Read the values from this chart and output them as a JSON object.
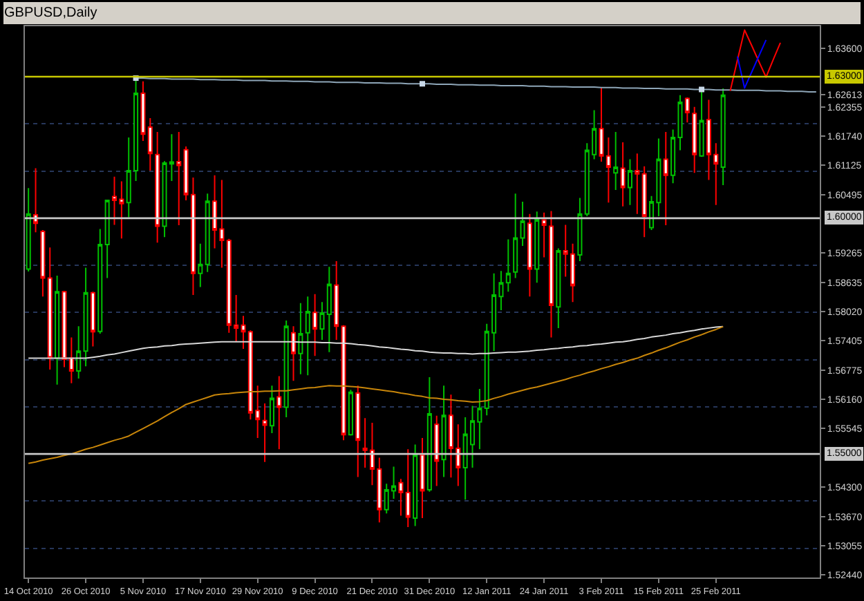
{
  "chart_data": {
    "type": "candlestick",
    "title": "GBPUSD,Daily",
    "categories": [
      "14 Oct 2010",
      null,
      null,
      null,
      null,
      null,
      null,
      null,
      "26 Oct 2010",
      null,
      null,
      null,
      null,
      null,
      null,
      null,
      "5 Nov 2010",
      null,
      null,
      null,
      null,
      null,
      null,
      null,
      "17 Nov 2010",
      null,
      null,
      null,
      null,
      null,
      null,
      null,
      "29 Nov 2010",
      null,
      null,
      null,
      null,
      null,
      null,
      null,
      "9 Dec 2010",
      null,
      null,
      null,
      null,
      null,
      null,
      null,
      "21 Dec 2010",
      null,
      null,
      null,
      null,
      null,
      null,
      null,
      "31 Dec 2010",
      null,
      null,
      null,
      null,
      null,
      null,
      null,
      "12 Jan 2011",
      null,
      null,
      null,
      null,
      null,
      null,
      null,
      "24 Jan 2011",
      null,
      null,
      null,
      null,
      null,
      null,
      null,
      "3 Feb 2011",
      null,
      null,
      null,
      null,
      null,
      null,
      null,
      "15 Feb 2011",
      null,
      null,
      null,
      null,
      null,
      null,
      null,
      "25 Feb 2011",
      null,
      null,
      null,
      null,
      null,
      null,
      null,
      null,
      null,
      null,
      null,
      null,
      null,
      null
    ],
    "ohlc": [
      [
        1.5892,
        1.6064,
        1.5887,
        1.6009
      ],
      [
        1.6007,
        1.6106,
        1.597,
        1.5989
      ],
      [
        1.5972,
        1.5975,
        1.5834,
        1.5873
      ],
      [
        1.5873,
        1.5938,
        1.5679,
        1.5703
      ],
      [
        1.5703,
        1.5878,
        1.5647,
        1.5844
      ],
      [
        1.5844,
        1.5846,
        1.5684,
        1.5701
      ],
      [
        1.5703,
        1.5747,
        1.565,
        1.5676
      ],
      [
        1.5676,
        1.5771,
        1.566,
        1.5718
      ],
      [
        1.5718,
        1.5895,
        1.5686,
        1.5842
      ],
      [
        1.5842,
        1.5844,
        1.5728,
        1.5759
      ],
      [
        1.576,
        1.5977,
        1.5755,
        1.5944
      ],
      [
        1.5944,
        1.6039,
        1.5873,
        1.6038
      ],
      [
        1.6046,
        1.6088,
        1.5986,
        1.6038
      ],
      [
        1.604,
        1.6078,
        1.5957,
        1.6031
      ],
      [
        1.6033,
        1.6171,
        1.6002,
        1.6101
      ],
      [
        1.6101,
        1.6297,
        1.6079,
        1.6265
      ],
      [
        1.6265,
        1.629,
        1.6164,
        1.6178
      ],
      [
        1.6193,
        1.6212,
        1.6101,
        1.6137
      ],
      [
        1.6135,
        1.6183,
        1.5948,
        1.5983
      ],
      [
        1.5983,
        1.6121,
        1.596,
        1.6117
      ],
      [
        1.6115,
        1.6178,
        1.6079,
        1.6119
      ],
      [
        1.612,
        1.6183,
        1.5985,
        1.6112
      ],
      [
        1.6145,
        1.6152,
        1.6038,
        1.605
      ],
      [
        1.605,
        1.6086,
        1.5837,
        1.5883
      ],
      [
        1.5883,
        1.5946,
        1.5854,
        1.5902
      ],
      [
        1.5902,
        1.6052,
        1.5886,
        1.6036
      ],
      [
        1.6036,
        1.6091,
        1.5936,
        1.5975
      ],
      [
        1.5977,
        1.6081,
        1.5895,
        1.5953
      ],
      [
        1.5953,
        1.5956,
        1.5757,
        1.5773
      ],
      [
        1.5773,
        1.5837,
        1.5738,
        1.5767
      ],
      [
        1.5773,
        1.5793,
        1.5723,
        1.5759
      ],
      [
        1.5759,
        1.5762,
        1.5573,
        1.5587
      ],
      [
        1.5592,
        1.5645,
        1.5534,
        1.5573
      ],
      [
        1.5571,
        1.5607,
        1.5483,
        1.5561
      ],
      [
        1.556,
        1.5645,
        1.5544,
        1.5618
      ],
      [
        1.5621,
        1.5665,
        1.551,
        1.5599
      ],
      [
        1.5599,
        1.5783,
        1.5578,
        1.5771
      ],
      [
        1.5757,
        1.5771,
        1.5655,
        1.5713
      ],
      [
        1.5713,
        1.582,
        1.5669,
        1.5755
      ],
      [
        1.5757,
        1.5834,
        1.5667,
        1.5802
      ],
      [
        1.58,
        1.5839,
        1.5708,
        1.5765
      ],
      [
        1.5765,
        1.5822,
        1.5742,
        1.5799
      ],
      [
        1.5796,
        1.5897,
        1.5716,
        1.586
      ],
      [
        1.5858,
        1.5909,
        1.5742,
        1.5771
      ],
      [
        1.5771,
        1.5773,
        1.5529,
        1.5541
      ],
      [
        1.5541,
        1.5636,
        1.5539,
        1.5631
      ],
      [
        1.5629,
        1.5645,
        1.5451,
        1.5529
      ],
      [
        1.5512,
        1.5576,
        1.5471,
        1.5508
      ],
      [
        1.5508,
        1.5566,
        1.5434,
        1.5468
      ],
      [
        1.5468,
        1.5492,
        1.5355,
        1.5382
      ],
      [
        1.5382,
        1.5437,
        1.5374,
        1.5424
      ],
      [
        1.5422,
        1.5473,
        1.5405,
        1.5432
      ],
      [
        1.5439,
        1.5447,
        1.5369,
        1.5418
      ],
      [
        1.5418,
        1.551,
        1.5345,
        1.5366
      ],
      [
        1.5364,
        1.552,
        1.5347,
        1.5498
      ],
      [
        1.5498,
        1.5534,
        1.5364,
        1.5422
      ],
      [
        1.5424,
        1.5663,
        1.542,
        1.5585
      ],
      [
        1.5563,
        1.5581,
        1.5432,
        1.5485
      ],
      [
        1.5488,
        1.5645,
        1.5451,
        1.5582
      ],
      [
        1.5582,
        1.5626,
        1.545,
        1.5512
      ],
      [
        1.5512,
        1.5563,
        1.5432,
        1.5471
      ],
      [
        1.5471,
        1.5578,
        1.5403,
        1.5542
      ],
      [
        1.552,
        1.5602,
        1.5471,
        1.557
      ],
      [
        1.5568,
        1.5638,
        1.551,
        1.5597
      ],
      [
        1.5597,
        1.5776,
        1.5582,
        1.576
      ],
      [
        1.5757,
        1.5883,
        1.5718,
        1.5837
      ],
      [
        1.5834,
        1.5888,
        1.5805,
        1.5863
      ],
      [
        1.5863,
        1.5955,
        1.5844,
        1.5883
      ],
      [
        1.5886,
        1.6052,
        1.5873,
        1.5958
      ],
      [
        1.5958,
        1.6035,
        1.5941,
        1.5994
      ],
      [
        1.5989,
        1.6009,
        1.5834,
        1.5892
      ],
      [
        1.5892,
        1.6014,
        1.5863,
        1.5997
      ],
      [
        1.5996,
        1.6012,
        1.5917,
        1.5985
      ],
      [
        1.5983,
        1.6015,
        1.5747,
        1.5815
      ],
      [
        1.5812,
        1.5936,
        1.5767,
        1.5931
      ],
      [
        1.5931,
        1.5986,
        1.5876,
        1.5924
      ],
      [
        1.5924,
        1.5946,
        1.5822,
        1.5857
      ],
      [
        1.5922,
        1.6043,
        1.5909,
        1.6009
      ],
      [
        1.6009,
        1.6159,
        1.6004,
        1.6144
      ],
      [
        1.6135,
        1.6229,
        1.6125,
        1.619
      ],
      [
        1.619,
        1.6277,
        1.612,
        1.6132
      ],
      [
        1.6132,
        1.6171,
        1.6033,
        1.6108
      ],
      [
        1.6096,
        1.6183,
        1.606,
        1.6108
      ],
      [
        1.6106,
        1.6161,
        1.6025,
        1.6065
      ],
      [
        1.6065,
        1.6125,
        1.6028,
        1.6101
      ],
      [
        1.6101,
        1.6137,
        1.6009,
        1.6094
      ],
      [
        1.6094,
        1.611,
        1.596,
        1.6004
      ],
      [
        1.598,
        1.6047,
        1.5975,
        1.6035
      ],
      [
        1.6033,
        1.6169,
        1.6004,
        1.6125
      ],
      [
        1.6125,
        1.6183,
        1.5985,
        1.6091
      ],
      [
        1.6091,
        1.6188,
        1.6074,
        1.6171
      ],
      [
        1.6171,
        1.6261,
        1.6144,
        1.6246
      ],
      [
        1.6254,
        1.6256,
        1.6203,
        1.6224
      ],
      [
        1.6222,
        1.6236,
        1.6096,
        1.6135
      ],
      [
        1.6132,
        1.6273,
        1.613,
        1.6207
      ],
      [
        1.6209,
        1.6251,
        1.6081,
        1.6135
      ],
      [
        1.6135,
        1.6159,
        1.6028,
        1.6115
      ],
      [
        1.6108,
        1.6275,
        1.607,
        1.6261
      ],
      null,
      null,
      null,
      null,
      null,
      null,
      null,
      null,
      null,
      null,
      null,
      null,
      null
    ],
    "colors": [
      "#00c000",
      "#ff0000",
      "#ff0000",
      "#ff0000",
      "#00c000",
      "#ff0000",
      "#ff0000",
      "#00c000",
      "#00c000",
      "#ff0000",
      "#00c000",
      "#00c000",
      "#ff0000",
      "#ff0000",
      "#00c000",
      "#00c000",
      "#ff0000",
      "#ff0000",
      "#ff0000",
      "#00c000",
      "#00c000",
      "#ff0000",
      "#ff0000",
      "#ff0000",
      "#00c000",
      "#00c000",
      "#ff0000",
      "#ff0000",
      "#ff0000",
      "#ff0000",
      "#ff0000",
      "#ff0000",
      "#ff0000",
      "#ff0000",
      "#00c000",
      "#ff0000",
      "#00c000",
      "#ff0000",
      "#00c000",
      "#00c000",
      "#ff0000",
      "#00c000",
      "#00c000",
      "#ff0000",
      "#ff0000",
      "#00c000",
      "#ff0000",
      "#ff0000",
      "#ff0000",
      "#ff0000",
      "#00c000",
      "#00c000",
      "#ff0000",
      "#ff0000",
      "#00c000",
      "#ff0000",
      "#00c000",
      "#ff0000",
      "#00c000",
      "#ff0000",
      "#ff0000",
      "#00c000",
      "#00c000",
      "#00c000",
      "#00c000",
      "#00c000",
      "#00c000",
      "#00c000",
      "#00c000",
      "#00c000",
      "#ff0000",
      "#00c000",
      "#ff0000",
      "#ff0000",
      "#00c000",
      "#ff0000",
      "#ff0000",
      "#00c000",
      "#00c000",
      "#00c000",
      "#ff0000",
      "#ff0000",
      "#00c000",
      "#ff0000",
      "#00c000",
      "#ff0000",
      "#ff0000",
      "#00c000",
      "#00c000",
      "#ff0000",
      "#00c000",
      "#00c000",
      "#ff0000",
      "#ff0000",
      "#00c000",
      "#ff0000",
      "#ff0000",
      "#00c000",
      null,
      null,
      null,
      null,
      null,
      null,
      null,
      null,
      null,
      null,
      null,
      null,
      null
    ],
    "series": [
      {
        "type": "line",
        "color": "#d8d8d8",
        "values": [
          1.5703,
          1.5703,
          1.5703,
          1.5703,
          1.5703,
          1.5703,
          1.5703,
          1.5703,
          1.5703,
          1.5705,
          1.5707,
          1.571,
          1.5712,
          1.5715,
          1.5718,
          1.5721,
          1.5724,
          1.5726,
          1.5727,
          1.5729,
          1.573,
          1.5732,
          1.5733,
          1.5734,
          1.5735,
          1.5736,
          1.5737,
          1.5738,
          1.5738,
          1.5738,
          1.5738,
          1.5738,
          1.5738,
          1.5738,
          1.5738,
          1.5738,
          1.5738,
          1.5738,
          1.5737,
          1.5737,
          1.5737,
          1.5736,
          1.5736,
          1.5735,
          1.5735,
          1.5734,
          1.5732,
          1.5731,
          1.5729,
          1.5727,
          1.5726,
          1.5724,
          1.5722,
          1.5721,
          1.5719,
          1.5718,
          1.5716,
          1.5715,
          1.5714,
          1.5714,
          1.5713,
          1.5713,
          1.5712,
          1.5713,
          1.5713,
          1.5714,
          1.5715,
          1.5716,
          1.5716,
          1.5717,
          1.5718,
          1.572,
          1.5721,
          1.5723,
          1.5724,
          1.5726,
          1.5727,
          1.5729,
          1.573,
          1.5732,
          1.5733,
          1.5735,
          1.5737,
          1.5738,
          1.574,
          1.5743,
          1.5745,
          1.5748,
          1.575,
          1.5752,
          1.5755,
          1.5757,
          1.576,
          1.5762,
          1.5765,
          1.5767,
          1.5769,
          1.577,
          null,
          null,
          null,
          null,
          null,
          null,
          null,
          null,
          null,
          null,
          null,
          null,
          null
        ]
      },
      {
        "type": "line",
        "color": "#c8860a",
        "values": [
          1.548,
          1.5483,
          1.5487,
          1.549,
          1.5493,
          1.5497,
          1.55,
          1.5505,
          1.551,
          1.5514,
          1.5519,
          1.5524,
          1.5529,
          1.5533,
          1.5538,
          1.5546,
          1.5554,
          1.5562,
          1.557,
          1.5579,
          1.5588,
          1.5596,
          1.5605,
          1.561,
          1.5615,
          1.562,
          1.5625,
          1.5627,
          1.5628,
          1.563,
          1.5631,
          1.5632,
          1.5632,
          1.5633,
          1.5633,
          1.5634,
          1.5634,
          1.5636,
          1.5638,
          1.564,
          1.5641,
          1.5643,
          1.5645,
          1.5644,
          1.5644,
          1.5643,
          1.5642,
          1.564,
          1.5638,
          1.5636,
          1.5634,
          1.5632,
          1.5629,
          1.5627,
          1.5624,
          1.5622,
          1.5619,
          1.5618,
          1.5616,
          1.5615,
          1.5613,
          1.5612,
          1.561,
          1.5611,
          1.5613,
          1.5618,
          1.5622,
          1.5627,
          1.5631,
          1.5635,
          1.5639,
          1.5642,
          1.5646,
          1.565,
          1.5654,
          1.5658,
          1.5663,
          1.5667,
          1.5672,
          1.5676,
          1.5681,
          1.5685,
          1.569,
          1.5694,
          1.5699,
          1.5703,
          1.5709,
          1.5714,
          1.572,
          1.5725,
          1.5731,
          1.5737,
          1.5742,
          1.5748,
          1.5753,
          1.5759,
          1.5764,
          1.577,
          null,
          null,
          null,
          null,
          null,
          null,
          null,
          null,
          null,
          null,
          null,
          null,
          null
        ]
      },
      {
        "type": "line",
        "color": "#8ea6b8",
        "values": [
          null,
          null,
          null,
          null,
          null,
          null,
          null,
          null,
          null,
          null,
          null,
          null,
          null,
          null,
          null,
          1.6297,
          1.6297,
          1.6296,
          1.6296,
          1.6296,
          1.6295,
          1.6295,
          1.6295,
          1.6295,
          1.6294,
          1.6294,
          1.6294,
          1.6293,
          1.6293,
          1.6293,
          1.6292,
          1.6292,
          1.6292,
          1.6292,
          1.6291,
          1.6291,
          1.6291,
          1.629,
          1.629,
          1.629,
          1.6289,
          1.6289,
          1.6289,
          1.6288,
          1.6288,
          1.6288,
          1.6288,
          1.6287,
          1.6287,
          1.6287,
          1.6286,
          1.6286,
          1.6286,
          1.6285,
          1.6285,
          1.6285,
          1.6285,
          1.6284,
          1.6284,
          1.6284,
          1.6283,
          1.6283,
          1.6283,
          1.6282,
          1.6282,
          1.6282,
          1.6281,
          1.6281,
          1.6281,
          1.6281,
          1.628,
          1.628,
          1.628,
          1.6279,
          1.6279,
          1.6279,
          1.6278,
          1.6278,
          1.6278,
          1.6278,
          1.6277,
          1.6277,
          1.6277,
          1.6276,
          1.6276,
          1.6276,
          1.6275,
          1.6275,
          1.6275,
          1.6274,
          1.6274,
          1.6274,
          1.6274,
          1.6273,
          1.6273,
          1.6273,
          1.6272,
          1.6272,
          1.6272,
          1.6271,
          1.6271,
          1.6271,
          1.6271,
          1.627,
          1.627,
          1.627,
          1.6269,
          1.6269,
          1.6269,
          1.6268,
          1.6268
        ]
      },
      {
        "type": "scatter",
        "color": "#c8d8e8",
        "marker": "square",
        "values": [
          null,
          null,
          null,
          null,
          null,
          null,
          null,
          null,
          null,
          null,
          null,
          null,
          null,
          null,
          null,
          1.6297,
          null,
          null,
          null,
          null,
          null,
          null,
          null,
          null,
          null,
          null,
          null,
          null,
          null,
          null,
          null,
          null,
          null,
          null,
          null,
          null,
          null,
          null,
          null,
          null,
          null,
          null,
          null,
          null,
          null,
          null,
          null,
          null,
          null,
          null,
          null,
          null,
          null,
          null,
          null,
          1.6285,
          null,
          null,
          null,
          null,
          null,
          null,
          null,
          null,
          null,
          null,
          null,
          null,
          null,
          null,
          null,
          null,
          null,
          null,
          null,
          null,
          null,
          null,
          null,
          null,
          null,
          null,
          null,
          null,
          null,
          null,
          null,
          null,
          null,
          null,
          null,
          null,
          null,
          null,
          1.6273,
          null,
          null,
          null,
          null,
          null,
          null,
          null,
          null,
          null,
          null,
          null,
          null,
          null,
          null,
          null,
          null
        ]
      },
      {
        "type": "line",
        "color": "#ff0000",
        "values": [
          null,
          null,
          null,
          null,
          null,
          null,
          null,
          null,
          null,
          null,
          null,
          null,
          null,
          null,
          null,
          null,
          null,
          null,
          null,
          null,
          null,
          null,
          null,
          null,
          null,
          null,
          null,
          null,
          null,
          null,
          null,
          null,
          null,
          null,
          null,
          null,
          null,
          null,
          null,
          null,
          null,
          null,
          null,
          null,
          null,
          null,
          null,
          null,
          null,
          null,
          null,
          null,
          null,
          null,
          null,
          null,
          null,
          null,
          null,
          null,
          null,
          null,
          null,
          null,
          null,
          null,
          null,
          null,
          null,
          null,
          null,
          null,
          null,
          null,
          null,
          null,
          null,
          null,
          null,
          null,
          null,
          null,
          null,
          null,
          null,
          null,
          null,
          null,
          null,
          null,
          null,
          null,
          null,
          null,
          null,
          null,
          null,
          null,
          1.627,
          1.6335,
          1.6399,
          1.6366,
          1.6332,
          1.6299,
          1.6336,
          1.6372,
          null,
          null,
          null,
          null,
          null
        ]
      },
      {
        "type": "line",
        "color": "#0000ff",
        "values": [
          null,
          null,
          null,
          null,
          null,
          null,
          null,
          null,
          null,
          null,
          null,
          null,
          null,
          null,
          null,
          null,
          null,
          null,
          null,
          null,
          null,
          null,
          null,
          null,
          null,
          null,
          null,
          null,
          null,
          null,
          null,
          null,
          null,
          null,
          null,
          null,
          null,
          null,
          null,
          null,
          null,
          null,
          null,
          null,
          null,
          null,
          null,
          null,
          null,
          null,
          null,
          null,
          null,
          null,
          null,
          null,
          null,
          null,
          null,
          null,
          null,
          null,
          null,
          null,
          null,
          null,
          null,
          null,
          null,
          null,
          null,
          null,
          null,
          null,
          null,
          null,
          null,
          null,
          null,
          null,
          null,
          null,
          null,
          null,
          null,
          null,
          null,
          null,
          null,
          null,
          null,
          null,
          null,
          null,
          null,
          null,
          null,
          null,
          null,
          1.6343,
          1.6276,
          1.631,
          1.6344,
          1.6378,
          null,
          null,
          null,
          null,
          null,
          null,
          null
        ]
      }
    ],
    "ref_lines": [
      {
        "axis": "y",
        "value": 1.63,
        "label": "1.63000",
        "color": "#c8c800"
      },
      {
        "axis": "y",
        "value": 1.6,
        "label": "1.60000",
        "color": "#c8c8c8"
      },
      {
        "axis": "y",
        "value": 1.55,
        "label": "1.55000",
        "color": "#c8c8c8"
      }
    ],
    "ylim": [
      1.5238,
      1.6407
    ],
    "yticks": [
      {
        "value": 1.636,
        "label": "1.63600"
      },
      1.62613,
      1.62355,
      {
        "value": 1.6174,
        "label": "1.61740"
      },
      1.61125,
      1.60495,
      1.59265,
      1.58635,
      {
        "value": 1.5802,
        "label": "1.58020"
      },
      1.57405,
      1.56775,
      {
        "value": 1.5616,
        "label": "1.56160"
      },
      1.55545,
      {
        "value": 1.543,
        "label": "1.54300"
      },
      {
        "value": 1.5367,
        "label": "1.53670"
      },
      1.53055,
      {
        "value": 1.5244,
        "label": "1.52440"
      },
      {
        "value": 1.62,
        "label": null
      },
      {
        "value": 1.61,
        "label": null
      },
      {
        "value": 1.59,
        "label": null
      },
      {
        "value": 1.58,
        "label": null
      },
      {
        "value": 1.57,
        "label": null
      },
      {
        "value": 1.56,
        "label": null
      },
      {
        "value": 1.54,
        "label": null
      },
      {
        "value": 1.53,
        "label": null
      }
    ],
    "grid": "y"
  }
}
